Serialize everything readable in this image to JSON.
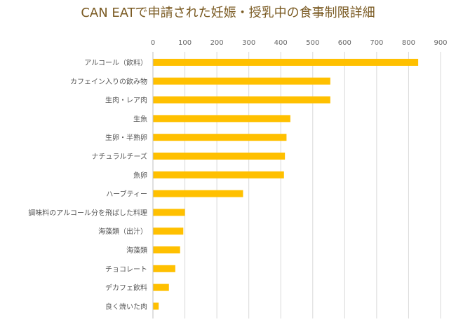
{
  "chart_data": {
    "type": "bar",
    "orientation": "horizontal",
    "title": "CAN EATで申請された妊娠・授乳中の食事制限詳細",
    "xlabel": "",
    "ylabel": "",
    "xlim": [
      0,
      900
    ],
    "x_ticks": [
      0,
      100,
      200,
      300,
      400,
      500,
      600,
      700,
      800,
      900
    ],
    "x_tick_labels": [
      "0",
      "100",
      "200",
      "300",
      "400",
      "500",
      "600",
      "700",
      "800",
      "900"
    ],
    "grid": true,
    "legend": "none",
    "bar_color": "#FFC000",
    "categories": [
      "アルコール（飲料）",
      "カフェイン入りの飲み物",
      "生肉・レア肉",
      "生魚",
      "生卵・半熟卵",
      "ナチュラルチーズ",
      "魚卵",
      "ハーブティー",
      "調味料のアルコール分を飛ばした料理",
      "海藻類（出汁）",
      "海藻類",
      "チョコレート",
      "デカフェ飲料",
      "良く焼いた肉"
    ],
    "values": [
      830,
      555,
      555,
      430,
      418,
      413,
      410,
      282,
      100,
      95,
      85,
      70,
      50,
      18
    ]
  }
}
